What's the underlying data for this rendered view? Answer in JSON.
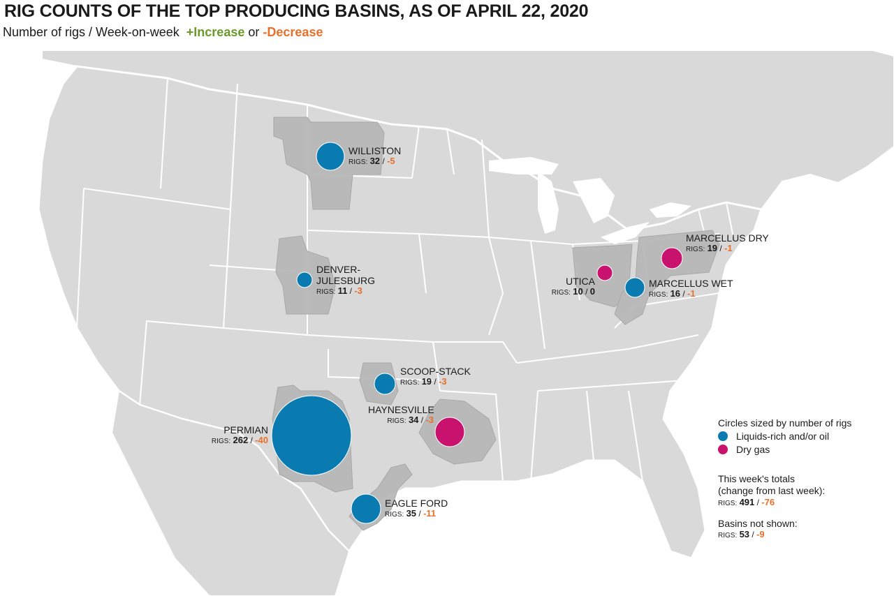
{
  "title": "RIG COUNTS OF THE TOP PRODUCING BASINS, AS OF APRIL 22, 2020",
  "subtitle": {
    "prefix": "Number of rigs / Week-on-week",
    "increase": "+Increase",
    "or": "or",
    "decrease": "-Decrease"
  },
  "colors": {
    "liquids": "#0a7bb0",
    "dry_gas": "#c8126e",
    "increase": "#6a9a2a",
    "decrease": "#e8702a",
    "basin_fill": "#b8b8b8",
    "land": "#d9d9d9"
  },
  "rigs_key": "RIGS:",
  "basins": [
    {
      "name": "WILLISTON",
      "rigs": "32",
      "change": "-5",
      "type": "liquids"
    },
    {
      "name": "DENVER-JULESBURG",
      "name_line1": "DENVER-",
      "name_line2": "JULESBURG",
      "rigs": "11",
      "change": "-3",
      "type": "liquids"
    },
    {
      "name": "SCOOP-STACK",
      "rigs": "19",
      "change": "-3",
      "type": "liquids"
    },
    {
      "name": "HAYNESVILLE",
      "rigs": "34",
      "change": "-3",
      "type": "dry_gas"
    },
    {
      "name": "PERMIAN",
      "rigs": "262",
      "change": "-40",
      "type": "liquids"
    },
    {
      "name": "EAGLE FORD",
      "rigs": "35",
      "change": "-11",
      "type": "liquids"
    },
    {
      "name": "UTICA",
      "rigs": "10",
      "change": "0",
      "type": "dry_gas"
    },
    {
      "name": "MARCELLUS DRY",
      "rigs": "19",
      "change": "-1",
      "type": "dry_gas"
    },
    {
      "name": "MARCELLUS WET",
      "rigs": "16",
      "change": "-1",
      "type": "liquids"
    }
  ],
  "legend": {
    "title": "Circles sized by number of rigs",
    "liquids": "Liquids-rich and/or oil",
    "dry_gas": "Dry gas",
    "totals_line1": "This week's totals",
    "totals_line2": "(change from last week):",
    "totals_rigs": "491",
    "totals_change": "-76",
    "not_shown_title": "Basins not shown:",
    "not_shown_rigs": "53",
    "not_shown_change": "-9"
  }
}
